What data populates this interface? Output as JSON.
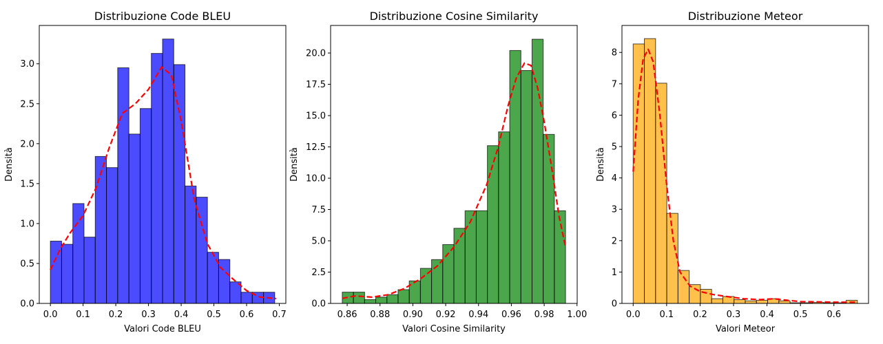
{
  "colors": {
    "kde": "#ff0000",
    "bar_edge": "#000000"
  },
  "chart_data": [
    {
      "type": "bar",
      "title": "Distribuzione Code BLEU",
      "xlabel": "Valori Code BLEU",
      "ylabel": "Densità",
      "bar_color": "#0000ff",
      "bin_edges": [
        0.0,
        0.0343,
        0.0686,
        0.1029,
        0.1372,
        0.1715,
        0.2058,
        0.2401,
        0.2744,
        0.3087,
        0.343,
        0.3773,
        0.4116,
        0.4459,
        0.4802,
        0.5145,
        0.5488,
        0.5831,
        0.6174,
        0.6517,
        0.686
      ],
      "values": [
        0.78,
        0.74,
        1.25,
        0.83,
        1.84,
        1.7,
        2.95,
        2.12,
        2.44,
        3.13,
        3.31,
        2.99,
        1.47,
        1.33,
        0.64,
        0.55,
        0.27,
        0.14,
        0.14,
        0.14
      ],
      "kde": {
        "x": [
          0.0,
          0.03,
          0.06,
          0.1,
          0.14,
          0.18,
          0.22,
          0.26,
          0.3,
          0.34,
          0.37,
          0.4,
          0.44,
          0.48,
          0.52,
          0.56,
          0.6,
          0.64,
          0.69
        ],
        "y": [
          0.42,
          0.68,
          0.88,
          1.1,
          1.45,
          1.95,
          2.38,
          2.5,
          2.68,
          2.96,
          2.86,
          2.28,
          1.3,
          0.75,
          0.45,
          0.3,
          0.16,
          0.08,
          0.06
        ]
      },
      "xlim": [
        -0.034,
        0.72
      ],
      "ylim": [
        0,
        3.48
      ],
      "xticks": [
        0.0,
        0.1,
        0.2,
        0.3,
        0.4,
        0.5,
        0.6,
        0.7
      ],
      "xtick_labels": [
        "0.0",
        "0.1",
        "0.2",
        "0.3",
        "0.4",
        "0.5",
        "0.6",
        "0.7"
      ],
      "yticks": [
        0.0,
        0.5,
        1.0,
        1.5,
        2.0,
        2.5,
        3.0
      ],
      "ytick_labels": [
        "0.0",
        "0.5",
        "1.0",
        "1.5",
        "2.0",
        "2.5",
        "3.0"
      ],
      "grid": false
    },
    {
      "type": "bar",
      "title": "Distribuzione Cosine Similarity",
      "xlabel": "Valori Cosine Similarity",
      "ylabel": "Densità",
      "bar_color": "#008000",
      "bin_edges": [
        0.857,
        0.8638,
        0.8706,
        0.8774,
        0.8842,
        0.891,
        0.8978,
        0.9046,
        0.9114,
        0.9182,
        0.925,
        0.9318,
        0.9386,
        0.9454,
        0.9522,
        0.959,
        0.9658,
        0.9726,
        0.9794,
        0.9862,
        0.993
      ],
      "values": [
        0.9,
        0.9,
        0.3,
        0.5,
        0.7,
        1.1,
        1.8,
        2.8,
        3.5,
        4.7,
        6.0,
        7.4,
        7.4,
        12.6,
        13.7,
        20.2,
        18.6,
        21.1,
        13.5,
        7.4
      ],
      "kde": {
        "x": [
          0.857,
          0.865,
          0.875,
          0.885,
          0.895,
          0.905,
          0.915,
          0.925,
          0.935,
          0.945,
          0.952,
          0.958,
          0.963,
          0.968,
          0.972,
          0.976,
          0.98,
          0.985,
          0.989,
          0.993
        ],
        "y": [
          0.4,
          0.6,
          0.5,
          0.7,
          1.2,
          2.0,
          3.0,
          4.5,
          6.5,
          9.5,
          12.5,
          15.8,
          18.0,
          19.2,
          19.0,
          17.2,
          14.5,
          10.5,
          7.0,
          4.5
        ]
      },
      "xlim": [
        0.8499,
        1.0001
      ],
      "ylim": [
        0,
        22.2
      ],
      "xticks": [
        0.86,
        0.88,
        0.9,
        0.92,
        0.94,
        0.96,
        0.98,
        1.0
      ],
      "xtick_labels": [
        "0.86",
        "0.88",
        "0.90",
        "0.92",
        "0.94",
        "0.96",
        "0.98",
        "1.00"
      ],
      "yticks": [
        0.0,
        2.5,
        5.0,
        7.5,
        10.0,
        12.5,
        15.0,
        17.5,
        20.0
      ],
      "ytick_labels": [
        "0.0",
        "2.5",
        "5.0",
        "7.5",
        "10.0",
        "12.5",
        "15.0",
        "17.5",
        "20.0"
      ],
      "grid": false
    },
    {
      "type": "bar",
      "title": "Distribuzione Meteor",
      "xlabel": "Valori Meteor",
      "ylabel": "Densità",
      "bar_color": "#ffa500",
      "bin_edges": [
        0.0,
        0.0335,
        0.067,
        0.1005,
        0.134,
        0.1675,
        0.201,
        0.2345,
        0.268,
        0.3015,
        0.335,
        0.3685,
        0.402,
        0.4355,
        0.469,
        0.5025,
        0.536,
        0.5695,
        0.603,
        0.6365,
        0.67
      ],
      "values": [
        8.27,
        8.44,
        7.02,
        2.87,
        1.05,
        0.6,
        0.45,
        0.15,
        0.22,
        0.12,
        0.08,
        0.1,
        0.15,
        0.08,
        0.02,
        0.02,
        0.03,
        0.02,
        0.02,
        0.1
      ],
      "kde": {
        "x": [
          0.0,
          0.015,
          0.03,
          0.045,
          0.06,
          0.08,
          0.1,
          0.12,
          0.14,
          0.17,
          0.2,
          0.24,
          0.28,
          0.33,
          0.38,
          0.42,
          0.46,
          0.5,
          0.55,
          0.6,
          0.65,
          0.67
        ],
        "y": [
          4.2,
          6.5,
          7.8,
          8.1,
          7.7,
          6.0,
          3.8,
          2.0,
          1.0,
          0.55,
          0.38,
          0.28,
          0.22,
          0.15,
          0.12,
          0.15,
          0.1,
          0.06,
          0.05,
          0.04,
          0.04,
          0.04
        ]
      },
      "xlim": [
        -0.0335,
        0.7035
      ],
      "ylim": [
        0,
        8.86
      ],
      "xticks": [
        0.0,
        0.1,
        0.2,
        0.3,
        0.4,
        0.5,
        0.6
      ],
      "xtick_labels": [
        "0.0",
        "0.1",
        "0.2",
        "0.3",
        "0.4",
        "0.5",
        "0.6"
      ],
      "yticks": [
        0,
        1,
        2,
        3,
        4,
        5,
        6,
        7,
        8
      ],
      "ytick_labels": [
        "0",
        "1",
        "2",
        "3",
        "4",
        "5",
        "6",
        "7",
        "8"
      ],
      "grid": false
    }
  ]
}
